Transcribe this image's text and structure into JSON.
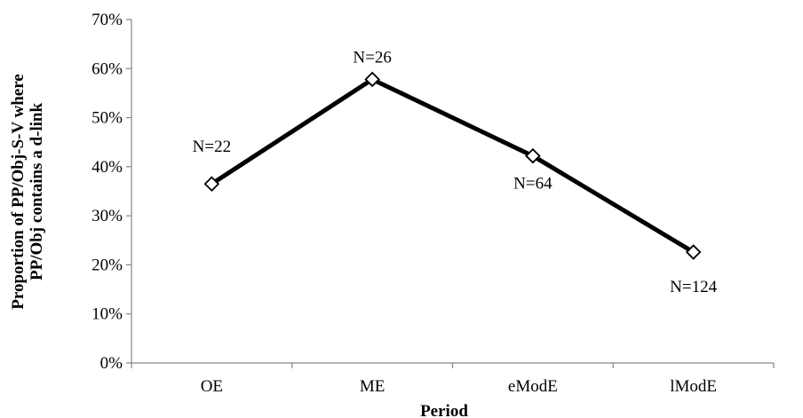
{
  "chart_data": {
    "type": "line",
    "title": "",
    "xlabel": "Period",
    "ylabel_lines": [
      "Proportion of PP/Obj-S-V where",
      "PP/Obj contains a d-link"
    ],
    "categories": [
      "OE",
      "ME",
      "eModE",
      "lModE"
    ],
    "values": [
      0.365,
      0.578,
      0.422,
      0.226
    ],
    "data_labels": [
      "N=22",
      "N=26",
      "N=64",
      "N=124"
    ],
    "ylim": [
      0,
      0.7
    ],
    "yticks": [
      0,
      0.1,
      0.2,
      0.3,
      0.4,
      0.5,
      0.6,
      0.7
    ],
    "ytick_labels": [
      "0%",
      "10%",
      "20%",
      "30%",
      "40%",
      "50%",
      "60%",
      "70%"
    ],
    "grid": false,
    "legend": "none",
    "line_color": "#000000",
    "marker": "diamond-open"
  }
}
